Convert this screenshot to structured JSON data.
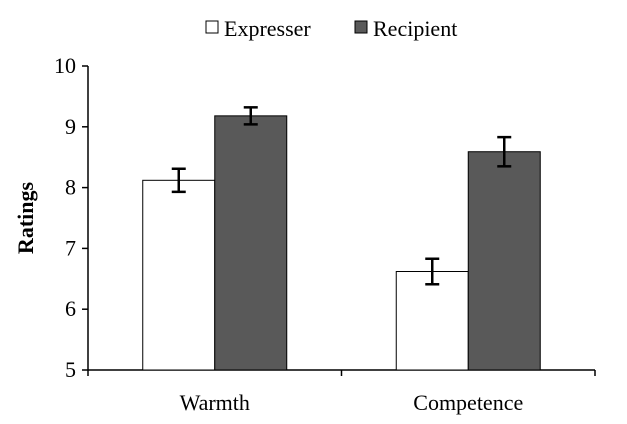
{
  "chart_data": {
    "type": "bar",
    "title": "",
    "xlabel": "",
    "ylabel": "Ratings",
    "ylim": [
      5,
      10
    ],
    "yticks": [
      "5",
      "6",
      "7",
      "8",
      "9",
      "10"
    ],
    "categories": [
      "Warmth",
      "Competence"
    ],
    "series": [
      {
        "name": "Expresser",
        "values": [
          8.12,
          6.62
        ],
        "errors": [
          0.19,
          0.21
        ],
        "color": "#ffffff"
      },
      {
        "name": "Recipient",
        "values": [
          9.18,
          8.59
        ],
        "errors": [
          0.14,
          0.24
        ],
        "color": "#595959"
      }
    ],
    "legend_position": "top",
    "grid": false,
    "error_bars": true
  }
}
